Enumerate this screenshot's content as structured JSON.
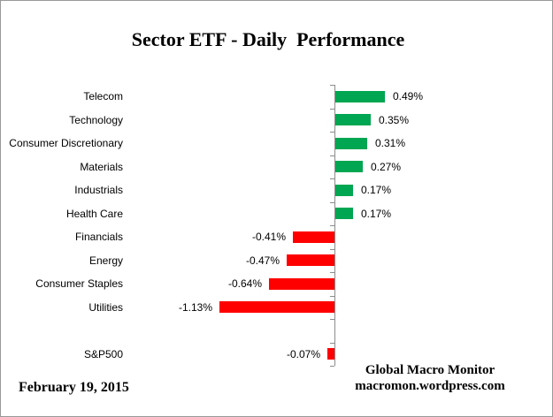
{
  "chart_data": {
    "type": "bar",
    "orientation": "horizontal",
    "title": "Sector ETF - Daily  Performance",
    "categories": [
      "Telecom",
      "Technology",
      "Consumer Discretionary",
      "Materials",
      "Industrials",
      "Health Care",
      "Financials",
      "Energy",
      "Consumer Staples",
      "Utilities",
      "S&P500"
    ],
    "values": [
      0.49,
      0.35,
      0.31,
      0.27,
      0.17,
      0.17,
      -0.41,
      -0.47,
      -0.64,
      -1.13,
      -0.07
    ],
    "value_labels": [
      "0.49%",
      "0.35%",
      "0.31%",
      "0.27%",
      "0.17%",
      "0.17%",
      "-0.41%",
      "-0.47%",
      "-0.64%",
      "-1.13%",
      "-0.07%"
    ],
    "separator_after_index": 9,
    "unit": "%",
    "xlim": [
      -1.3,
      0.7
    ],
    "grid": false,
    "legend": false,
    "positive_color": "#00A651",
    "negative_color": "#FF0000",
    "axis_color": "#8C8C8C"
  },
  "footer": {
    "date": "February 19,  2015",
    "brand_line1": "Global Macro Monitor",
    "brand_line2": "macromon.wordpress.com"
  }
}
